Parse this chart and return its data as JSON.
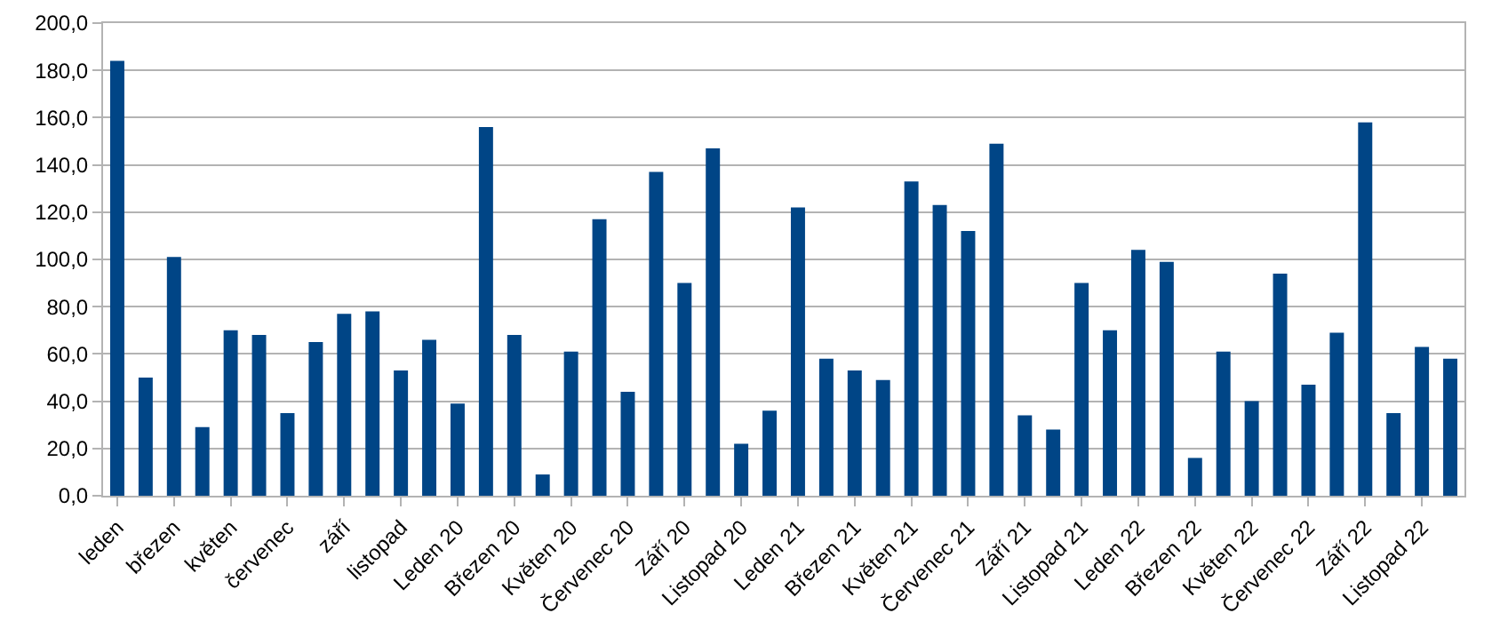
{
  "chart_data": {
    "type": "bar",
    "categories": [
      "leden",
      null,
      "březen",
      null,
      "květen",
      null,
      "červenec",
      null,
      "září",
      null,
      "listopad",
      null,
      "Leden 20",
      null,
      "Březen 20",
      null,
      "Květen 20",
      null,
      "Červenec 20",
      null,
      "Září 20",
      null,
      "Listopad 20",
      null,
      "Leden 21",
      null,
      "Březen 21",
      null,
      "Květen 21",
      null,
      "Červenec 21",
      null,
      "Září 21",
      null,
      "Listopad 21",
      null,
      "Leden 22",
      null,
      "Březen 22",
      null,
      "Květen 22",
      null,
      "Červenec 22",
      null,
      "Září 22",
      null,
      "Listopad 22",
      null
    ],
    "values": [
      184,
      50,
      101,
      29,
      70,
      68,
      35,
      65,
      77,
      78,
      53,
      66,
      39,
      156,
      68,
      9,
      61,
      117,
      44,
      137,
      90,
      147,
      22,
      36,
      122,
      58,
      53,
      49,
      133,
      123,
      112,
      149,
      34,
      28,
      90,
      70,
      104,
      99,
      16,
      61,
      40,
      94,
      47,
      69,
      158,
      35,
      63,
      58
    ],
    "color": "#004586",
    "ylim": [
      0,
      200
    ],
    "yticks": [
      {
        "value": 0,
        "label": "0,0"
      },
      {
        "value": 20,
        "label": "20,0"
      },
      {
        "value": 40,
        "label": "40,0"
      },
      {
        "value": 60,
        "label": "60,0"
      },
      {
        "value": 80,
        "label": "80,0"
      },
      {
        "value": 100,
        "label": "100,0"
      },
      {
        "value": 120,
        "label": "120,0"
      },
      {
        "value": 140,
        "label": "140,0"
      },
      {
        "value": 160,
        "label": "160,0"
      },
      {
        "value": 180,
        "label": "180,0"
      },
      {
        "value": 200,
        "label": "200,0"
      }
    ],
    "grid": "y"
  }
}
